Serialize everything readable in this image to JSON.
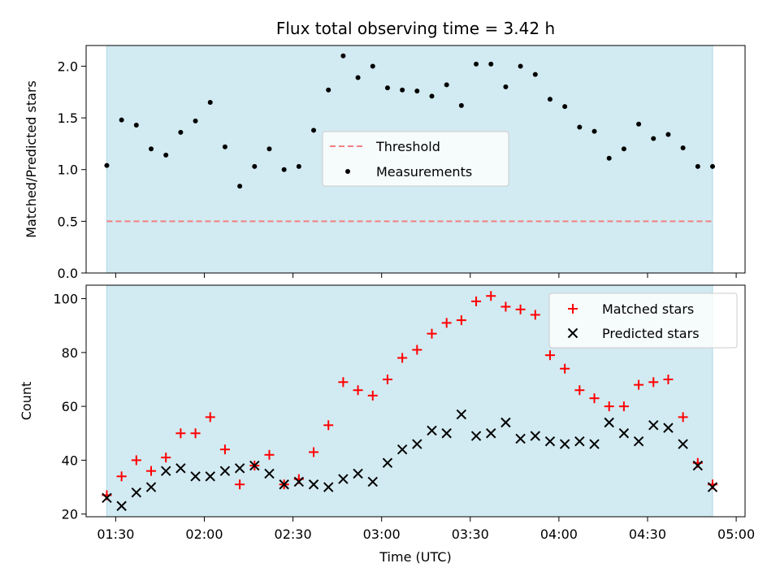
{
  "colors": {
    "span_fill": "#add8e6",
    "threshold": "#f08080",
    "measurement": "#000000",
    "matched": "#ff0000",
    "predicted": "#000000"
  },
  "chart_data": [
    {
      "type": "scatter",
      "title": "Flux total observing time = 3.42 h",
      "xlabel": "",
      "ylabel": "Matched/Predicted stars",
      "ylim": [
        0,
        2.2
      ],
      "yticks": [
        0.0,
        0.5,
        1.0,
        1.5,
        2.0
      ],
      "ytick_labels": [
        "0.0",
        "0.5",
        "1.0",
        "1.5",
        "2.0"
      ],
      "grid": false,
      "legend_position": "center",
      "observing_span": [
        "01:27",
        "04:52"
      ],
      "threshold": {
        "name": "Threshold",
        "value": 0.5,
        "style": "dashed"
      },
      "series": [
        {
          "name": "Measurements",
          "marker": "dot",
          "x": [
            "01:27",
            "01:32",
            "01:37",
            "01:42",
            "01:47",
            "01:52",
            "01:57",
            "02:02",
            "02:07",
            "02:12",
            "02:17",
            "02:22",
            "02:27",
            "02:32",
            "02:37",
            "02:42",
            "02:47",
            "02:52",
            "02:57",
            "03:02",
            "03:07",
            "03:12",
            "03:17",
            "03:22",
            "03:27",
            "03:32",
            "03:37",
            "03:42",
            "03:47",
            "03:52",
            "03:57",
            "04:02",
            "04:07",
            "04:12",
            "04:17",
            "04:22",
            "04:27",
            "04:32",
            "04:37",
            "04:42",
            "04:47",
            "04:52"
          ],
          "values": [
            1.04,
            1.48,
            1.43,
            1.2,
            1.14,
            1.36,
            1.47,
            1.65,
            1.22,
            0.84,
            1.03,
            1.2,
            1.0,
            1.03,
            1.38,
            1.77,
            2.1,
            1.89,
            2.0,
            1.79,
            1.77,
            1.76,
            1.71,
            1.82,
            1.62,
            2.02,
            2.02,
            1.8,
            2.0,
            1.92,
            1.68,
            1.61,
            1.41,
            1.37,
            1.11,
            1.2,
            1.44,
            1.3,
            1.34,
            1.21,
            1.03,
            1.03
          ]
        }
      ]
    },
    {
      "type": "scatter",
      "title": "",
      "xlabel": "Time (UTC)",
      "ylabel": "Count",
      "xlim": [
        "01:20",
        "05:03"
      ],
      "ylim": [
        19,
        105
      ],
      "xticks": [
        "01:30",
        "02:00",
        "02:30",
        "03:00",
        "03:30",
        "04:00",
        "04:30",
        "05:00"
      ],
      "yticks": [
        20,
        40,
        60,
        80,
        100
      ],
      "ytick_labels": [
        "20",
        "40",
        "60",
        "80",
        "100"
      ],
      "grid": false,
      "legend_position": "top-right",
      "observing_span": [
        "01:27",
        "04:52"
      ],
      "x": [
        "01:27",
        "01:32",
        "01:37",
        "01:42",
        "01:47",
        "01:52",
        "01:57",
        "02:02",
        "02:07",
        "02:12",
        "02:17",
        "02:22",
        "02:27",
        "02:32",
        "02:37",
        "02:42",
        "02:47",
        "02:52",
        "02:57",
        "03:02",
        "03:07",
        "03:12",
        "03:17",
        "03:22",
        "03:27",
        "03:32",
        "03:37",
        "03:42",
        "03:47",
        "03:52",
        "03:57",
        "04:02",
        "04:07",
        "04:12",
        "04:17",
        "04:22",
        "04:27",
        "04:32",
        "04:37",
        "04:42",
        "04:47",
        "04:52"
      ],
      "series": [
        {
          "name": "Matched stars",
          "marker": "plus",
          "values": [
            27,
            34,
            40,
            36,
            41,
            50,
            50,
            56,
            44,
            31,
            38,
            42,
            31,
            33,
            43,
            53,
            69,
            66,
            64,
            70,
            78,
            81,
            87,
            91,
            92,
            99,
            101,
            97,
            96,
            94,
            79,
            74,
            66,
            63,
            60,
            60,
            68,
            69,
            70,
            56,
            39,
            31
          ]
        },
        {
          "name": "Predicted stars",
          "marker": "x",
          "values": [
            26,
            23,
            28,
            30,
            36,
            37,
            34,
            34,
            36,
            37,
            38,
            35,
            31,
            32,
            31,
            30,
            33,
            35,
            32,
            39,
            44,
            46,
            51,
            50,
            57,
            49,
            50,
            54,
            48,
            49,
            47,
            46,
            47,
            46,
            54,
            50,
            47,
            53,
            52,
            46,
            38,
            30
          ]
        }
      ]
    }
  ]
}
